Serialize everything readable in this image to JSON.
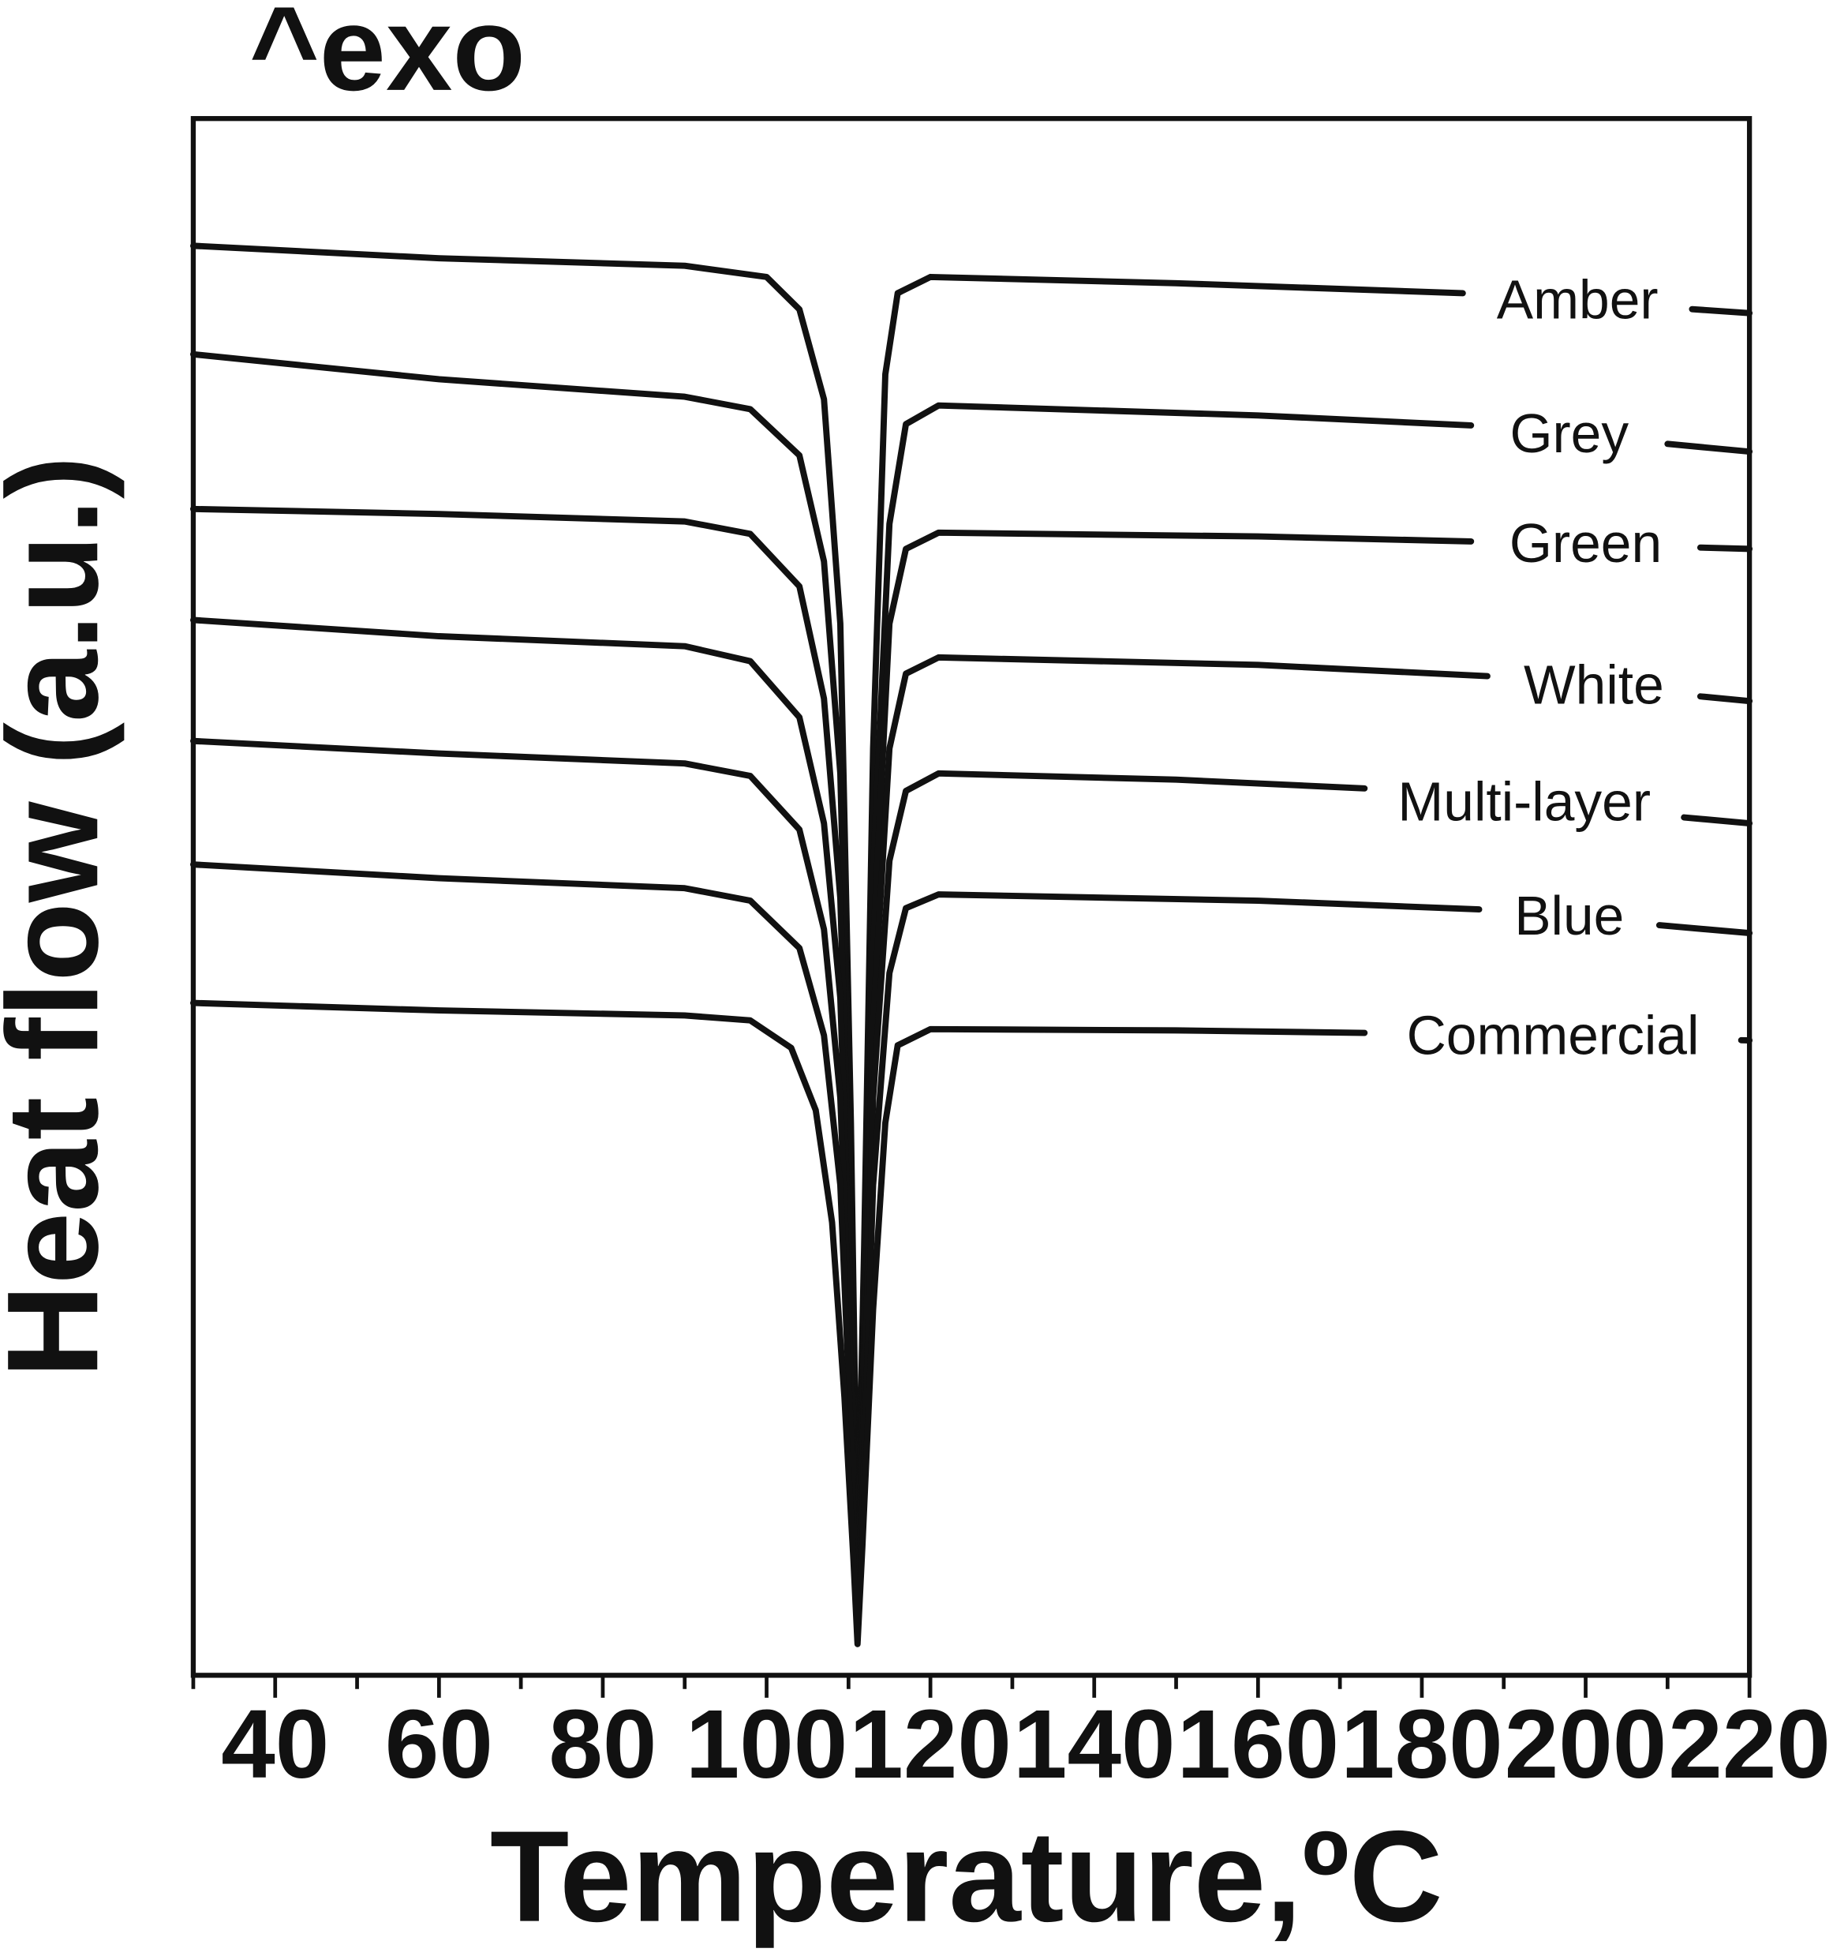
{
  "chart_data": {
    "type": "line",
    "exo_label": "^exo",
    "xlabel": "Temperature,ºC",
    "ylabel": "Heat flow (a.u.)",
    "xlim": [
      30,
      220
    ],
    "x_ticks": [
      40,
      60,
      80,
      100,
      120,
      140,
      160,
      180,
      200,
      220
    ],
    "x_minor_step": 10,
    "y_ticks_shown": false,
    "grid": false,
    "legend": "inline labels at right end of each curve",
    "line_color": "#111111",
    "series": [
      {
        "name": "Amber",
        "points": [
          [
            30,
            197
          ],
          [
            60,
            207
          ],
          [
            90,
            213
          ],
          [
            100,
            222
          ],
          [
            104,
            248
          ],
          [
            107,
            320
          ],
          [
            109,
            500
          ],
          [
            110.3,
            900
          ],
          [
            111.1,
            1250
          ],
          [
            111.9,
            1000
          ],
          [
            113,
            600
          ],
          [
            114.5,
            300
          ],
          [
            116,
            235
          ],
          [
            120,
            222
          ],
          [
            150,
            227
          ],
          [
            185,
            235
          ],
          [
            220,
            251
          ]
        ]
      },
      {
        "name": "Grey",
        "points": [
          [
            30,
            284
          ],
          [
            60,
            304
          ],
          [
            90,
            318
          ],
          [
            98,
            328
          ],
          [
            104,
            365
          ],
          [
            107,
            450
          ],
          [
            109,
            620
          ],
          [
            110.3,
            950
          ],
          [
            111.1,
            1260
          ],
          [
            111.9,
            1020
          ],
          [
            113,
            700
          ],
          [
            115,
            420
          ],
          [
            117,
            340
          ],
          [
            121,
            325
          ],
          [
            160,
            333
          ],
          [
            186,
            341
          ],
          [
            220,
            362
          ]
        ]
      },
      {
        "name": "Green",
        "points": [
          [
            30,
            408
          ],
          [
            60,
            412
          ],
          [
            90,
            418
          ],
          [
            98,
            428
          ],
          [
            104,
            470
          ],
          [
            107,
            560
          ],
          [
            109,
            720
          ],
          [
            110.3,
            1000
          ],
          [
            111.1,
            1275
          ],
          [
            111.9,
            1050
          ],
          [
            113,
            760
          ],
          [
            115,
            500
          ],
          [
            117,
            440
          ],
          [
            121,
            427
          ],
          [
            160,
            430
          ],
          [
            186,
            434
          ],
          [
            220,
            440
          ]
        ]
      },
      {
        "name": "White",
        "points": [
          [
            30,
            497
          ],
          [
            60,
            510
          ],
          [
            90,
            518
          ],
          [
            98,
            530
          ],
          [
            104,
            575
          ],
          [
            107,
            660
          ],
          [
            109,
            800
          ],
          [
            110.3,
            1050
          ],
          [
            111.1,
            1290
          ],
          [
            111.9,
            1080
          ],
          [
            113,
            820
          ],
          [
            115,
            600
          ],
          [
            117,
            540
          ],
          [
            121,
            527
          ],
          [
            160,
            533
          ],
          [
            188,
            542
          ],
          [
            220,
            562
          ]
        ]
      },
      {
        "name": "Multi-layer",
        "points": [
          [
            30,
            594
          ],
          [
            60,
            604
          ],
          [
            90,
            612
          ],
          [
            98,
            622
          ],
          [
            104,
            665
          ],
          [
            107,
            745
          ],
          [
            109,
            880
          ],
          [
            110.3,
            1100
          ],
          [
            111.1,
            1305
          ],
          [
            111.9,
            1120
          ],
          [
            113,
            880
          ],
          [
            115,
            690
          ],
          [
            117,
            634
          ],
          [
            121,
            620
          ],
          [
            150,
            625
          ],
          [
            173,
            632
          ],
          [
            220,
            660
          ]
        ]
      },
      {
        "name": "Blue",
        "points": [
          [
            30,
            693
          ],
          [
            60,
            704
          ],
          [
            90,
            712
          ],
          [
            98,
            722
          ],
          [
            104,
            760
          ],
          [
            107,
            830
          ],
          [
            109,
            950
          ],
          [
            110.3,
            1150
          ],
          [
            111.1,
            1315
          ],
          [
            111.9,
            1170
          ],
          [
            113,
            950
          ],
          [
            115,
            780
          ],
          [
            117,
            728
          ],
          [
            121,
            717
          ],
          [
            160,
            722
          ],
          [
            187,
            729
          ],
          [
            220,
            748
          ]
        ]
      },
      {
        "name": "Commercial",
        "points": [
          [
            30,
            804
          ],
          [
            60,
            810
          ],
          [
            90,
            814
          ],
          [
            98,
            818
          ],
          [
            103,
            840
          ],
          [
            106,
            890
          ],
          [
            108,
            980
          ],
          [
            109.5,
            1120
          ],
          [
            110.6,
            1250
          ],
          [
            111.1,
            1318
          ],
          [
            111.7,
            1240
          ],
          [
            113,
            1050
          ],
          [
            114.5,
            900
          ],
          [
            116,
            838
          ],
          [
            120,
            825
          ],
          [
            150,
            826
          ],
          [
            173,
            828
          ],
          [
            220,
            834
          ]
        ]
      }
    ]
  }
}
